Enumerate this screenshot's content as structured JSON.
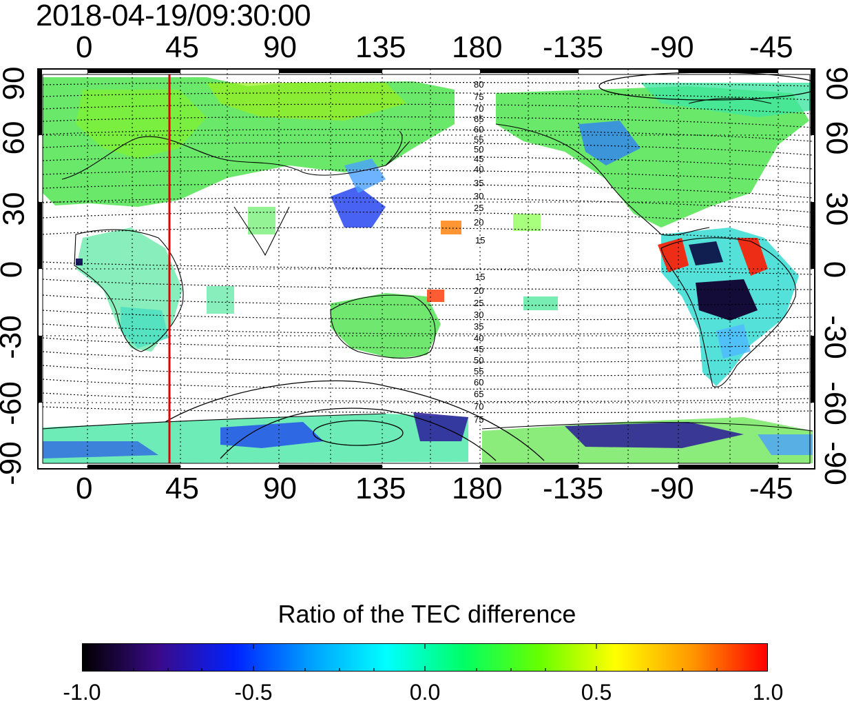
{
  "timestamp": "2018-04-19/09:30:00",
  "lon_ticks": [
    "0",
    "45",
    "90",
    "135",
    "180",
    "-135",
    "-90",
    "-45"
  ],
  "lat_ticks": [
    "90",
    "60",
    "30",
    "0",
    "-30",
    "-60",
    "-90"
  ],
  "contour_labels_north": [
    "80",
    "75",
    "70",
    "65",
    "60",
    "55",
    "50",
    "45",
    "40",
    "35",
    "30",
    "25",
    "20",
    "15"
  ],
  "contour_labels_south": [
    "15",
    "20",
    "25",
    "30",
    "35",
    "40",
    "45",
    "50",
    "55",
    "60",
    "65",
    "70",
    "75"
  ],
  "colorbar": {
    "title": "Ratio of the TEC difference",
    "tick_labels": [
      "-1.0",
      "-0.5",
      "0.0",
      "0.5",
      "1.0"
    ],
    "colors": [
      "#000000",
      "#3a0a8a",
      "#0022ff",
      "#00a0ff",
      "#00ffff",
      "#00ff66",
      "#66ff00",
      "#ffff00",
      "#ff9900",
      "#ff0000"
    ]
  },
  "marker_line": {
    "longitude": 37,
    "color": "#e00000"
  },
  "map_colors": {
    "ocean": "#ffffff",
    "coast": "#000000",
    "grid": "#000000"
  }
}
